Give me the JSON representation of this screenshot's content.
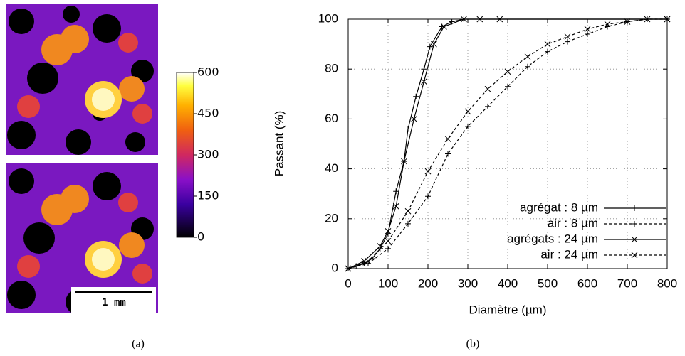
{
  "panel_a": {
    "colorbar": {
      "lim": [
        0,
        600
      ],
      "ticks": [
        0,
        150,
        300,
        450,
        600
      ]
    },
    "scale_bar": "1 mm"
  },
  "captions": [
    "(a)",
    "(b)"
  ],
  "chart_data": {
    "type": "line",
    "xlabel": "Diamètre (µm)",
    "ylabel": "Passant (%)",
    "xlim": [
      0,
      800
    ],
    "ylim": [
      0,
      100
    ],
    "xticks": [
      0,
      100,
      200,
      300,
      400,
      500,
      600,
      700,
      800
    ],
    "yticks": [
      0,
      20,
      40,
      60,
      80,
      100
    ],
    "grid": true,
    "legend": "lower right",
    "series": [
      {
        "name": "agrégat : 8 µm",
        "color": "#000000",
        "line_style": "solid",
        "marker": "+",
        "x": [
          0,
          20,
          40,
          60,
          80,
          100,
          120,
          140,
          150,
          170,
          190,
          205,
          235,
          260,
          290,
          800
        ],
        "values": [
          0,
          1,
          2,
          4,
          8,
          14,
          31,
          43,
          56,
          69,
          80,
          89,
          97,
          99,
          100,
          100
        ]
      },
      {
        "name": "air : 8 µm",
        "color": "#000000",
        "line_style": "dashed",
        "marker": "+",
        "x": [
          0,
          50,
          100,
          150,
          200,
          250,
          300,
          350,
          400,
          450,
          500,
          550,
          600,
          650,
          700,
          750,
          800
        ],
        "values": [
          0,
          2,
          8,
          18,
          29,
          46,
          57,
          65,
          73,
          81,
          87,
          91,
          94,
          97,
          99,
          100,
          100
        ]
      },
      {
        "name": "agrégats : 24 µm",
        "color": "#000000",
        "line_style": "solid",
        "marker": "x",
        "x": [
          0,
          40,
          80,
          100,
          120,
          140,
          165,
          190,
          215,
          240,
          290,
          330,
          380,
          800
        ],
        "values": [
          0,
          3,
          9,
          15,
          25,
          43,
          60,
          75,
          90,
          97,
          100,
          100,
          100,
          100
        ]
      },
      {
        "name": "air : 24 µm",
        "color": "#000000",
        "line_style": "dashed",
        "marker": "x",
        "x": [
          0,
          50,
          100,
          150,
          200,
          250,
          300,
          350,
          400,
          450,
          500,
          550,
          600,
          650,
          700,
          750,
          800
        ],
        "values": [
          0,
          3,
          11,
          23,
          39,
          52,
          63,
          72,
          79,
          85,
          90,
          93,
          96,
          98,
          99,
          100,
          100
        ]
      }
    ]
  }
}
